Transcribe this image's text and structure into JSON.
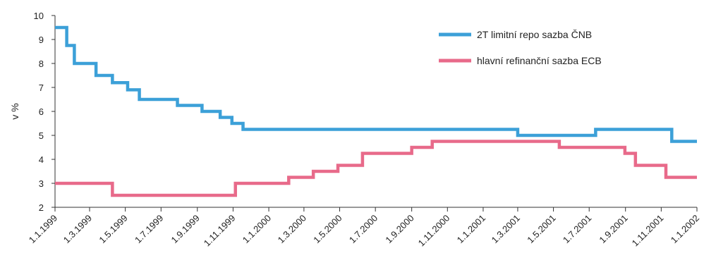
{
  "chart_data": {
    "type": "line",
    "title": "",
    "xlabel": "",
    "ylabel": "v %",
    "ylim": [
      2,
      10
    ],
    "yticks": [
      2,
      3,
      4,
      5,
      6,
      7,
      8,
      9,
      10
    ],
    "xlim": [
      "1999-01-01",
      "2002-01-01"
    ],
    "x_tick_labels": [
      "1.1.1999",
      "1.3.1999",
      "1.5.1999",
      "1.7.1999",
      "1.9.1999",
      "1.11.1999",
      "1.1.2000",
      "1.3.2000",
      "1.5.2000",
      "1.7.2000",
      "1.9.2000",
      "1.11.2000",
      "1.1.2001",
      "1.3.2001",
      "1.5.2001",
      "1.7.2001",
      "1.9.2001",
      "1.11.2001",
      "1.1.2002"
    ],
    "x_tick_dates": [
      "1999-01-01",
      "1999-03-01",
      "1999-05-01",
      "1999-07-01",
      "1999-09-01",
      "1999-11-01",
      "2000-01-01",
      "2000-03-01",
      "2000-05-01",
      "2000-07-01",
      "2000-09-01",
      "2000-11-01",
      "2001-01-01",
      "2001-03-01",
      "2001-05-01",
      "2001-07-01",
      "2001-09-01",
      "2001-11-01",
      "2002-01-01"
    ],
    "grid": false,
    "legend_position": "top-right",
    "step": true,
    "series": [
      {
        "name": "2T limitní repo sazba ČNB",
        "color": "#3ca0d8",
        "x": [
          "1999-01-01",
          "1999-01-21",
          "1999-02-03",
          "1999-03-12",
          "1999-04-09",
          "1999-05-05",
          "1999-05-25",
          "1999-07-29",
          "1999-09-09",
          "1999-10-10",
          "1999-10-30",
          "1999-11-18",
          "2001-03-01",
          "2001-07-12",
          "2001-11-19",
          "2002-01-01"
        ],
        "values": [
          9.5,
          8.75,
          8.0,
          7.5,
          7.2,
          6.9,
          6.5,
          6.25,
          6.0,
          5.75,
          5.5,
          5.25,
          5.0,
          5.25,
          4.75,
          4.75
        ]
      },
      {
        "name": "hlavní refinanční sazba ECB",
        "color": "#e86a8a",
        "x": [
          "1999-01-01",
          "1999-04-09",
          "1999-11-05",
          "2000-02-04",
          "2000-03-17",
          "2000-04-28",
          "2000-06-09",
          "2000-09-01",
          "2000-10-06",
          "2001-05-11",
          "2001-08-31",
          "2001-09-18",
          "2001-11-09",
          "2002-01-01"
        ],
        "values": [
          3.0,
          2.5,
          3.0,
          3.25,
          3.5,
          3.75,
          4.25,
          4.5,
          4.75,
          4.5,
          4.25,
          3.75,
          3.25,
          3.25
        ]
      }
    ]
  }
}
